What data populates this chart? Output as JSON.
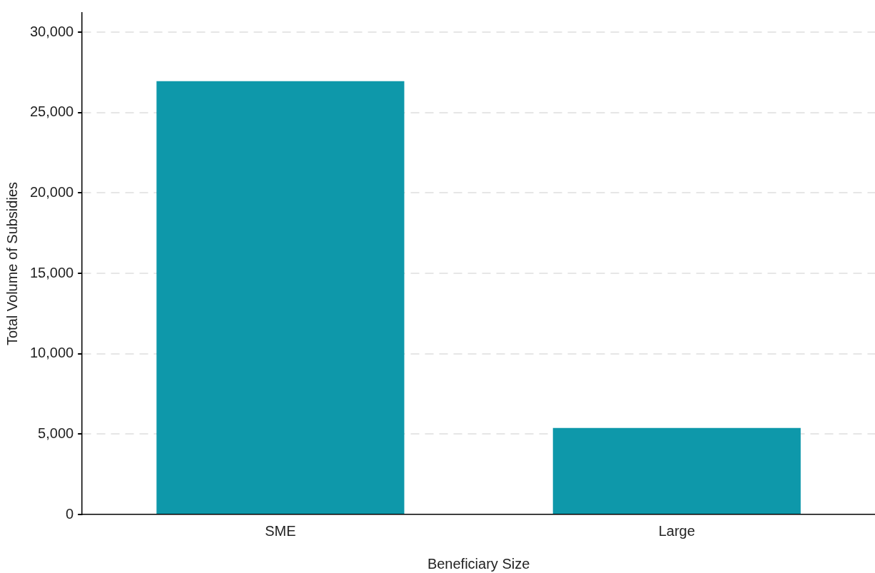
{
  "chart_data": {
    "type": "bar",
    "xlabel": "Beneficiary Size",
    "ylabel": "Total Volume of Subsidies",
    "categories": [
      "SME",
      "Large"
    ],
    "values": [
      26950,
      5380
    ],
    "color": "#0e98aa",
    "ylim": [
      0,
      31200
    ],
    "yticks": [
      {
        "value": 0,
        "label": "0"
      },
      {
        "value": 5000,
        "label": "5,000"
      },
      {
        "value": 10000,
        "label": "10,000"
      },
      {
        "value": 15000,
        "label": "15,000"
      },
      {
        "value": 20000,
        "label": "20,000"
      },
      {
        "value": 25000,
        "label": "25,000"
      },
      {
        "value": 30000,
        "label": "30,000"
      }
    ],
    "grid": "y",
    "legend": false
  }
}
